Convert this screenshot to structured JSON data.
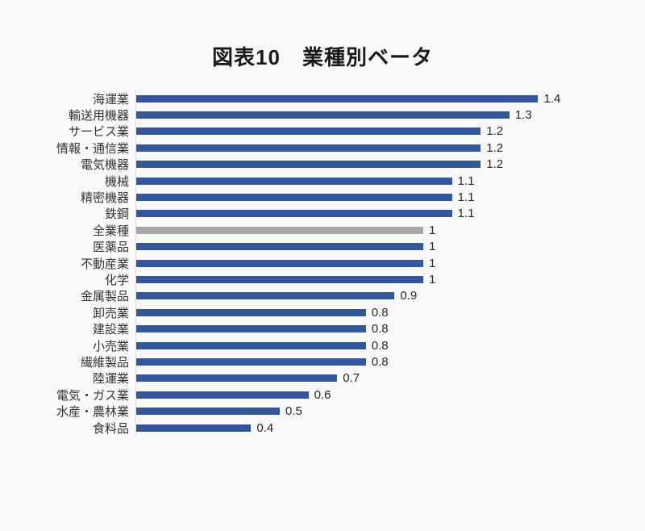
{
  "title": "図表10　業種別ベータ",
  "chart_data": {
    "type": "bar",
    "orientation": "horizontal",
    "title": "図表10　業種別ベータ",
    "xlabel": "",
    "ylabel": "",
    "xlim": [
      0,
      1.5
    ],
    "grid": false,
    "legend": "none",
    "value_labels_shown": true,
    "categories": [
      "海運業",
      "輸送用機器",
      "サービス業",
      "情報・通信業",
      "電気機器",
      "機械",
      "精密機器",
      "鉄鋼",
      "全業種",
      "医薬品",
      "不動産業",
      "化学",
      "金属製品",
      "卸売業",
      "建設業",
      "小売業",
      "繊維製品",
      "陸運業",
      "電気・ガス業",
      "水産・農林業",
      "食料品"
    ],
    "values": [
      1.4,
      1.3,
      1.2,
      1.2,
      1.2,
      1.1,
      1.1,
      1.1,
      1,
      1,
      1,
      1,
      0.9,
      0.8,
      0.8,
      0.8,
      0.8,
      0.7,
      0.6,
      0.5,
      0.4
    ],
    "value_labels": [
      "1.4",
      "1.3",
      "1.2",
      "1.2",
      "1.2",
      "1.1",
      "1.1",
      "1.1",
      "1",
      "1",
      "1",
      "1",
      "0.9",
      "0.8",
      "0.8",
      "0.8",
      "0.8",
      "0.7",
      "0.6",
      "0.5",
      "0.4"
    ],
    "highlight_category": "全業種",
    "bar_color": "#32579c",
    "highlight_color": "#a8a8a8"
  },
  "colors": {
    "background": "#fafafa",
    "axis_line": "#d9d9d9",
    "label_text": "#333333",
    "value_text": "#262626",
    "title_text": "#1a1a1a"
  }
}
